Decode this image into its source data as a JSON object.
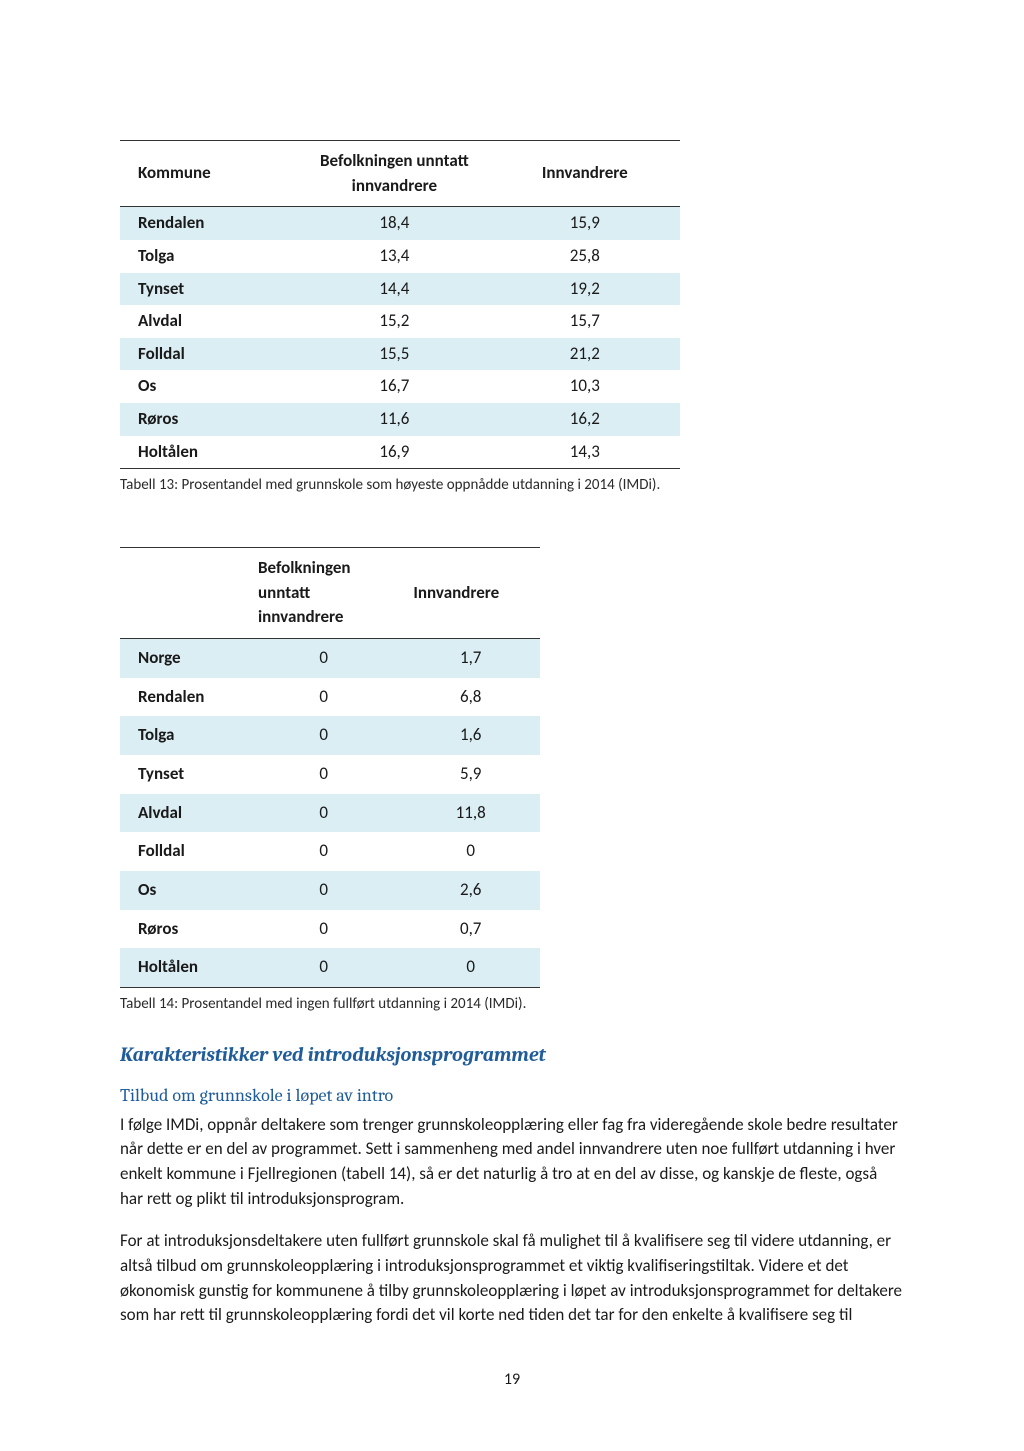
{
  "colors": {
    "row_even": "#dbeef4",
    "row_odd": "#ffffff",
    "border": "#333333",
    "heading_blue": "#1f5c99",
    "text": "#1a1a1a"
  },
  "table13": {
    "headers": [
      "Kommune",
      "Befolkningen unntatt innvandrere",
      "Innvandrere"
    ],
    "rows": [
      [
        "Rendalen",
        "18,4",
        "15,9"
      ],
      [
        "Tolga",
        "13,4",
        "25,8"
      ],
      [
        "Tynset",
        "14,4",
        "19,2"
      ],
      [
        "Alvdal",
        "15,2",
        "15,7"
      ],
      [
        "Folldal",
        "15,5",
        "21,2"
      ],
      [
        "Os",
        "16,7",
        "10,3"
      ],
      [
        "Røros",
        "11,6",
        "16,2"
      ],
      [
        "Holtålen",
        "16,9",
        "14,3"
      ]
    ],
    "col_widths": [
      "32%",
      "34%",
      "34%"
    ]
  },
  "caption13": "Tabell 13: Prosentandel med grunnskole som høyeste oppnådde utdanning i 2014 (IMDi).",
  "table14": {
    "headers": [
      "",
      "Befolkningen unntatt innvandrere",
      "Innvandrere"
    ],
    "rows": [
      [
        "Norge",
        "0",
        "1,7"
      ],
      [
        "Rendalen",
        "0",
        "6,8"
      ],
      [
        "Tolga",
        "0",
        "1,6"
      ],
      [
        "Tynset",
        "0",
        "5,9"
      ],
      [
        "Alvdal",
        "0",
        "11,8"
      ],
      [
        "Folldal",
        "0",
        "0"
      ],
      [
        "Os",
        "0",
        "2,6"
      ],
      [
        "Røros",
        "0",
        "0,7"
      ],
      [
        "Holtålen",
        "0",
        "0"
      ]
    ],
    "col_widths": [
      "30%",
      "37%",
      "33%"
    ]
  },
  "caption14": "Tabell 14: Prosentandel med ingen fullført utdanning i 2014 (IMDi).",
  "section_heading": "Karakteristikker ved introduksjonsprogrammet",
  "sub_heading": "Tilbud om grunnskole i løpet av intro",
  "para1": "I følge IMDi, oppnår deltakere som trenger grunnskoleopplæring eller fag fra videregående skole bedre resultater når dette er en del av programmet. Sett i sammenheng med andel innvandrere uten noe fullført utdanning i hver enkelt kommune i Fjellregionen (tabell 14), så er det naturlig å tro at en del av disse, og kanskje de fleste, også har rett og plikt til introduksjonsprogram.",
  "para2": "For at introduksjonsdeltakere uten fullført grunnskole skal få mulighet til å kvalifisere seg til videre utdanning, er altså tilbud om grunnskoleopplæring i introduksjonsprogrammet et viktig kvalifiseringstiltak. Videre et det økonomisk gunstig for kommunene å tilby grunnskoleopplæring i løpet av introduksjonsprogrammet for deltakere som har rett til grunnskoleopplæring fordi det vil korte ned tiden det tar for den enkelte å kvalifisere seg til",
  "page_number": "19"
}
